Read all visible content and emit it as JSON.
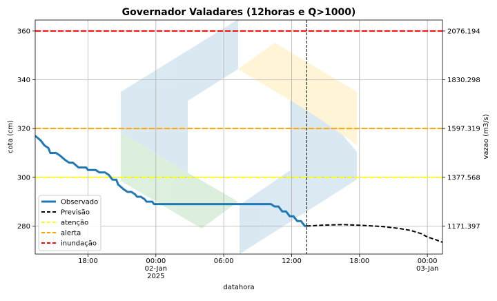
{
  "chart_data": {
    "type": "line",
    "title": "Governador Valadares (12horas e Q>1000)",
    "xlabel": "datahora",
    "ylabel": "cota (cm)",
    "y2label": "vazao (m3/s)",
    "xlim": [
      "2025-01-01 13:20",
      "2025-01-03 01:20"
    ],
    "ylim": [
      268.5,
      364.5
    ],
    "grid": true,
    "legend_position": "lower-left",
    "x_ticks": [
      {
        "t": "2025-01-01 18:00",
        "label": "18:00"
      },
      {
        "t": "2025-01-02 00:00",
        "label": "00:00\n02-Jan\n2025"
      },
      {
        "t": "2025-01-02 06:00",
        "label": "06:00"
      },
      {
        "t": "2025-01-02 12:00",
        "label": "12:00"
      },
      {
        "t": "2025-01-02 18:00",
        "label": "18:00"
      },
      {
        "t": "2025-01-03 00:00",
        "label": "00:00\n03-Jan"
      }
    ],
    "y_ticks": [
      280,
      300,
      320,
      340,
      360
    ],
    "y2_ticks": [
      {
        "y": 280,
        "label": "1171.397"
      },
      {
        "y": 300,
        "label": "1377.568"
      },
      {
        "y": 320,
        "label": "1597.319"
      },
      {
        "y": 340,
        "label": "1830.298"
      },
      {
        "y": 360,
        "label": "2076.194"
      }
    ],
    "forecast_start": "2025-01-02 13:20",
    "series": [
      {
        "name": "Observado",
        "color": "#1f77b4",
        "style": "solid",
        "points": [
          [
            "2025-01-01 13:20",
            317
          ],
          [
            "2025-01-01 13:50",
            315
          ],
          [
            "2025-01-01 14:10",
            313
          ],
          [
            "2025-01-01 14:30",
            312
          ],
          [
            "2025-01-01 14:40",
            310
          ],
          [
            "2025-01-01 15:10",
            310
          ],
          [
            "2025-01-01 15:30",
            309
          ],
          [
            "2025-01-01 16:00",
            307
          ],
          [
            "2025-01-01 16:20",
            306
          ],
          [
            "2025-01-01 16:40",
            306
          ],
          [
            "2025-01-01 17:10",
            304
          ],
          [
            "2025-01-01 17:50",
            304
          ],
          [
            "2025-01-01 18:00",
            303
          ],
          [
            "2025-01-01 18:40",
            303
          ],
          [
            "2025-01-01 19:00",
            302
          ],
          [
            "2025-01-01 19:30",
            302
          ],
          [
            "2025-01-01 19:50",
            301
          ],
          [
            "2025-01-01 20:10",
            299
          ],
          [
            "2025-01-01 20:30",
            299
          ],
          [
            "2025-01-01 20:40",
            297
          ],
          [
            "2025-01-01 21:10",
            295
          ],
          [
            "2025-01-01 21:30",
            294
          ],
          [
            "2025-01-01 21:50",
            294
          ],
          [
            "2025-01-01 22:10",
            293
          ],
          [
            "2025-01-01 22:20",
            292
          ],
          [
            "2025-01-01 22:40",
            292
          ],
          [
            "2025-01-01 23:00",
            291
          ],
          [
            "2025-01-01 23:10",
            290
          ],
          [
            "2025-01-01 23:40",
            290
          ],
          [
            "2025-01-01 23:50",
            289
          ],
          [
            "2025-01-02 10:10",
            289
          ],
          [
            "2025-01-02 10:30",
            288
          ],
          [
            "2025-01-02 10:50",
            288
          ],
          [
            "2025-01-02 11:10",
            286
          ],
          [
            "2025-01-02 11:30",
            286
          ],
          [
            "2025-01-02 11:50",
            284
          ],
          [
            "2025-01-02 12:10",
            284
          ],
          [
            "2025-01-02 12:30",
            282
          ],
          [
            "2025-01-02 12:50",
            282
          ],
          [
            "2025-01-02 13:10",
            280
          ],
          [
            "2025-01-02 13:20",
            280
          ]
        ]
      },
      {
        "name": "Previsão",
        "color": "#000000",
        "style": "dashed",
        "points": [
          [
            "2025-01-02 13:20",
            280
          ],
          [
            "2025-01-02 15:00",
            280.4
          ],
          [
            "2025-01-02 16:30",
            280.6
          ],
          [
            "2025-01-02 18:00",
            280.3
          ],
          [
            "2025-01-02 20:00",
            279.8
          ],
          [
            "2025-01-02 21:30",
            279
          ],
          [
            "2025-01-02 22:30",
            278.2
          ],
          [
            "2025-01-02 23:30",
            276.8
          ],
          [
            "2025-01-03 00:00",
            275.5
          ],
          [
            "2025-01-03 00:40",
            274.5
          ],
          [
            "2025-01-03 01:20",
            273.3
          ]
        ]
      }
    ],
    "thresholds": [
      {
        "name": "atenção",
        "y": 300,
        "color": "#ffff00"
      },
      {
        "name": "alerta",
        "y": 320,
        "color": "#ffa500"
      },
      {
        "name": "inundação",
        "y": 360,
        "color": "#ff0000"
      }
    ]
  }
}
